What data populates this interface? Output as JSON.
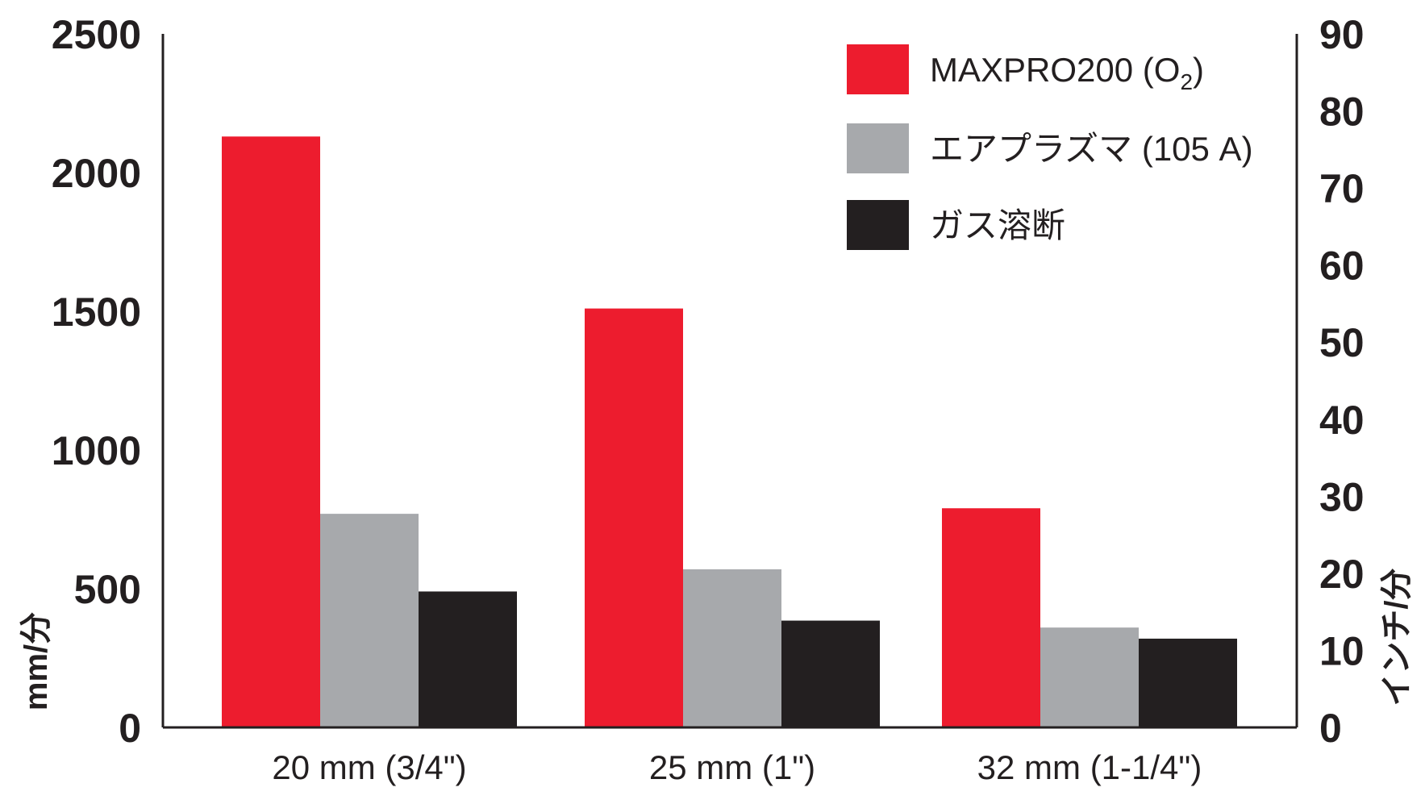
{
  "chart_data": {
    "type": "bar",
    "categories": [
      "20 mm (3/4\")",
      "25 mm (1\")",
      "32 mm (1-1/4\")"
    ],
    "series": [
      {
        "name": "MAXPRO200 (O",
        "name_sub": "2",
        "name_end": ")",
        "color": "#ed1c2e",
        "values": [
          2130,
          1510,
          790
        ]
      },
      {
        "name": "エアプラズマ (105 A)",
        "color": "#a7a9ac",
        "values": [
          770,
          570,
          360
        ]
      },
      {
        "name": "ガス溶断",
        "color": "#231f20",
        "values": [
          490,
          385,
          320
        ]
      }
    ],
    "ylabel": "mm/分",
    "ylim": [
      0,
      2500
    ],
    "yticks": [
      "0",
      "500",
      "1000",
      "1500",
      "2000",
      "2500"
    ],
    "y2label": "インチ/分",
    "y2lim": [
      0,
      90
    ],
    "y2ticks": [
      "0",
      "10",
      "20",
      "30",
      "40",
      "50",
      "60",
      "70",
      "80",
      "90"
    ],
    "legend_position": "top-right",
    "grid": false
  }
}
